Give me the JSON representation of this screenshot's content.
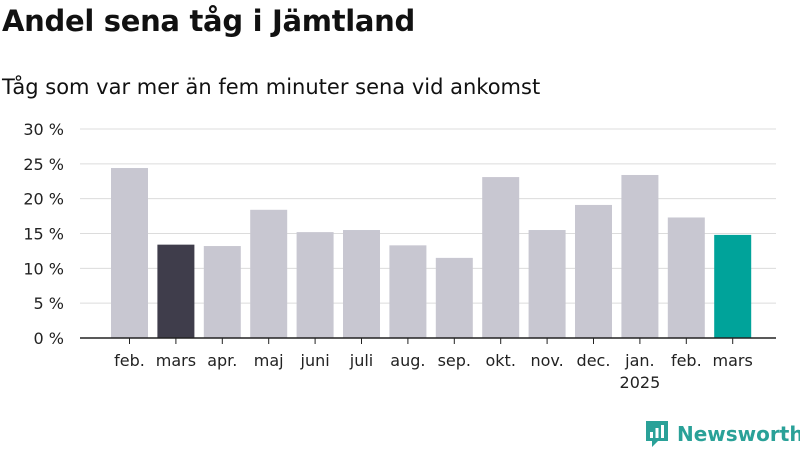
{
  "page": {
    "title": "Andel sena tåg i Jämtland",
    "subtitle": "Tåg som var mer än fem minuter sena vid ankomst"
  },
  "logo": {
    "text": "Newsworthy",
    "icon": "newsworthy-chat-bars-icon",
    "color": "#2aa198"
  },
  "chart_data": {
    "type": "bar",
    "categories": [
      "feb.",
      "mars",
      "apr.",
      "maj",
      "juni",
      "juli",
      "aug.",
      "sep.",
      "okt.",
      "nov.",
      "dec.",
      "jan.",
      "feb.",
      "mars"
    ],
    "category_sublabels": [
      "",
      "",
      "",
      "",
      "",
      "",
      "",
      "",
      "",
      "",
      "",
      "2025",
      "",
      ""
    ],
    "values": [
      24.4,
      13.4,
      13.2,
      18.4,
      15.2,
      15.5,
      13.3,
      11.5,
      23.1,
      15.5,
      19.1,
      23.4,
      17.3,
      14.8
    ],
    "bar_colors": [
      "#c8c7d1",
      "#3f3d4b",
      "#c8c7d1",
      "#c8c7d1",
      "#c8c7d1",
      "#c8c7d1",
      "#c8c7d1",
      "#c8c7d1",
      "#c8c7d1",
      "#c8c7d1",
      "#c8c7d1",
      "#c8c7d1",
      "#c8c7d1",
      "#00a39a"
    ],
    "ylim": [
      0,
      30
    ],
    "yticks": [
      0,
      5,
      10,
      15,
      20,
      25,
      30
    ],
    "ytick_labels": [
      "0 %",
      "5 %",
      "10 %",
      "15 %",
      "20 %",
      "25 %",
      "30 %"
    ],
    "grid": true,
    "title": "Andel sena tåg i Jämtland",
    "subtitle": "Tåg som var mer än fem minuter sena vid ankomst"
  }
}
